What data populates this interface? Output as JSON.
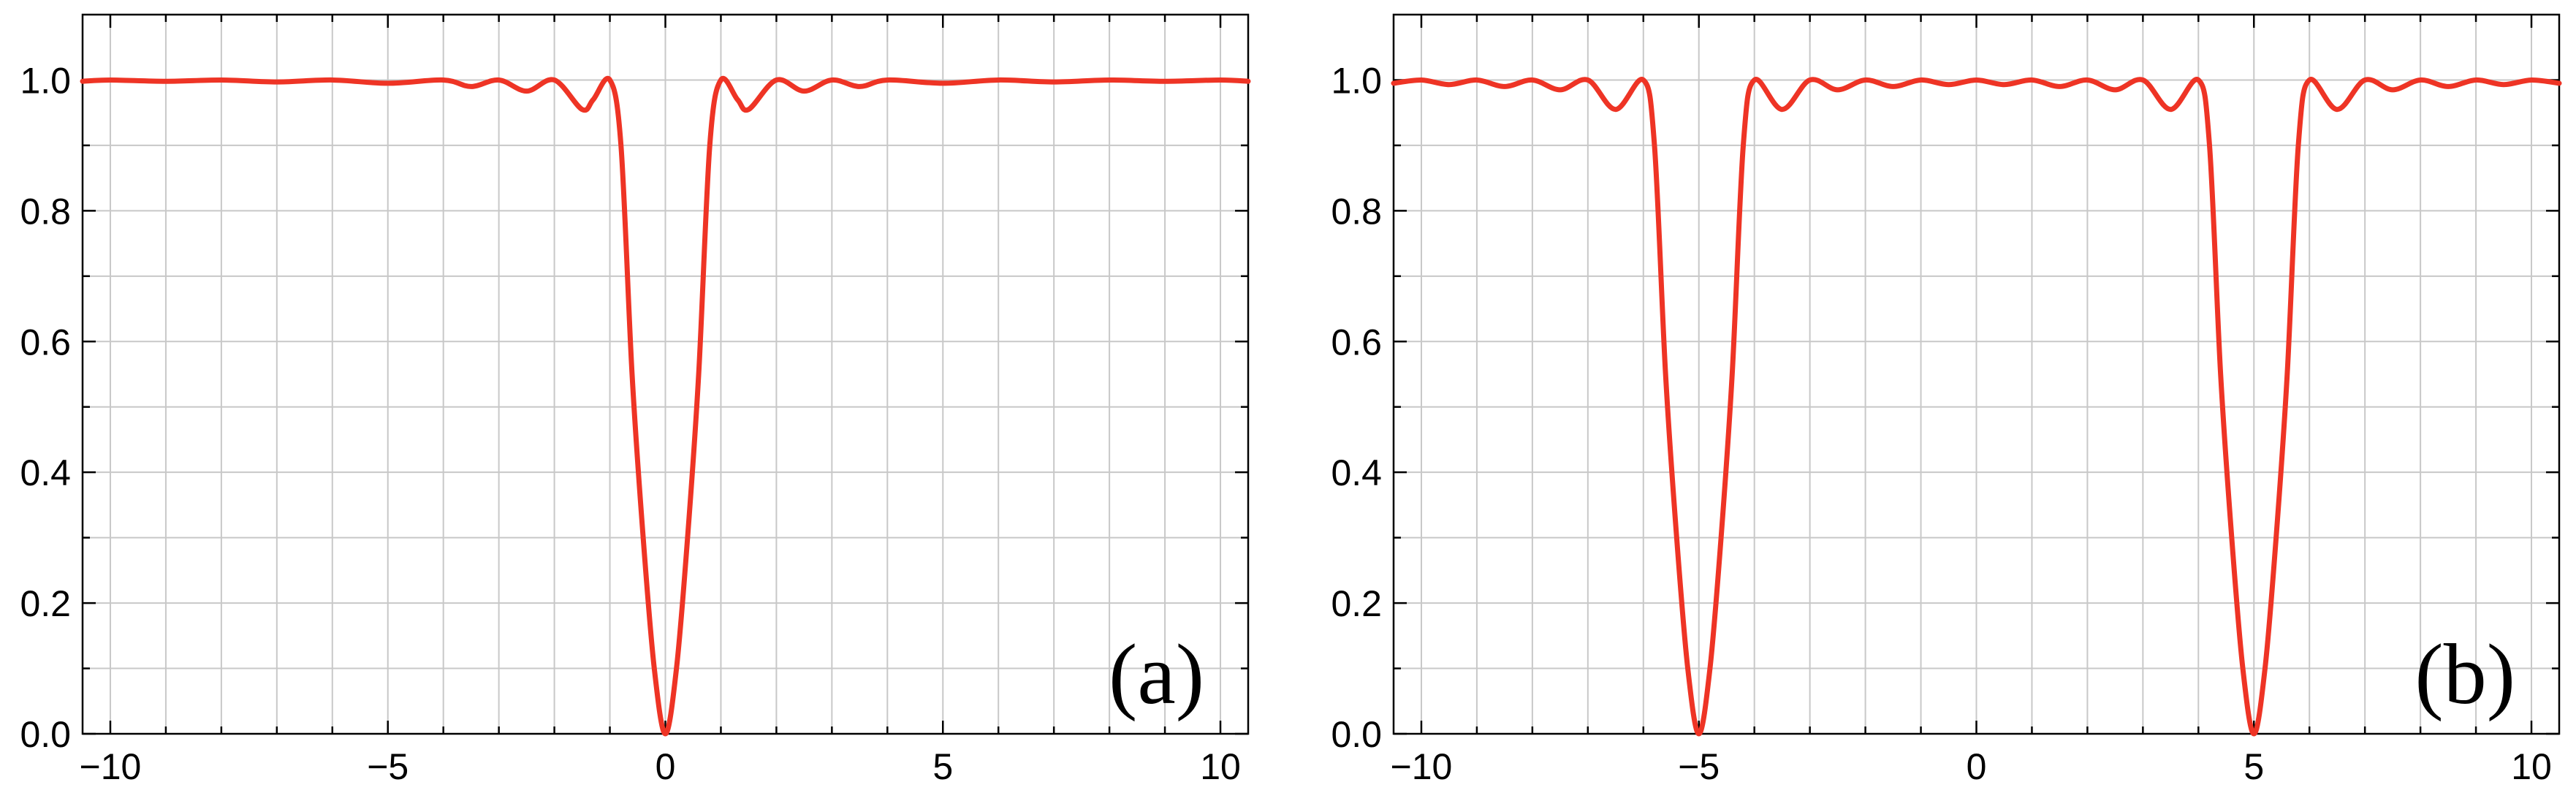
{
  "colors": {
    "line": "#ee3425",
    "grid": "#c8c8c8",
    "axis": "#000000",
    "background": "#ffffff"
  },
  "chart_data": [
    {
      "type": "line",
      "panel_label": "(a)",
      "xlim": [
        -10.5,
        10.5
      ],
      "ylim": [
        0,
        1.1
      ],
      "grid": true,
      "x_ticks": [
        -10,
        -5,
        0,
        5,
        10
      ],
      "x_tick_labels": [
        "−10",
        "−5",
        "0",
        "5",
        "10"
      ],
      "y_ticks": [
        0,
        0.2,
        0.4,
        0.6,
        0.8,
        1.0
      ],
      "y_tick_labels": [
        "0.0",
        "0.2",
        "0.4",
        "0.6",
        "0.8",
        "1.0"
      ],
      "series": [
        {
          "x": [
            -10.5,
            -10,
            -9,
            -8,
            -7,
            -6,
            -5,
            -4,
            -3.5,
            -3,
            -2.5,
            -2,
            -1.5,
            -1.3,
            -1,
            -0.8,
            -0.6,
            -0.4,
            -0.2,
            0,
            0.2,
            0.4,
            0.6,
            0.8,
            1,
            1.3,
            1.5,
            2,
            2.5,
            3,
            3.5,
            4,
            5,
            6,
            7,
            8,
            9,
            10,
            10.5
          ],
          "y": [
            0.998,
            1.0,
            0.998,
            1.0,
            0.997,
            1.0,
            0.995,
            1.0,
            0.99,
            1.0,
            0.983,
            1.0,
            0.955,
            0.97,
            1.0,
            0.9,
            0.55,
            0.3,
            0.1,
            0.0,
            0.1,
            0.3,
            0.55,
            0.9,
            1.0,
            0.97,
            0.955,
            1.0,
            0.983,
            1.0,
            0.99,
            1.0,
            0.995,
            1.0,
            0.997,
            1.0,
            0.998,
            1.0,
            0.998
          ]
        }
      ]
    },
    {
      "type": "line",
      "panel_label": "(b)",
      "xlim": [
        -10.5,
        10.5
      ],
      "ylim": [
        0,
        1.1
      ],
      "grid": true,
      "x_ticks": [
        -10,
        -5,
        0,
        5,
        10
      ],
      "x_tick_labels": [
        "−10",
        "−5",
        "0",
        "5",
        "10"
      ],
      "y_ticks": [
        0,
        0.2,
        0.4,
        0.6,
        0.8,
        1.0
      ],
      "y_tick_labels": [
        "0.0",
        "0.2",
        "0.4",
        "0.6",
        "0.8",
        "1.0"
      ],
      "series": [
        {
          "x": [
            -10.5,
            -10,
            -9.5,
            -9,
            -8.5,
            -8,
            -7.5,
            -7,
            -6.5,
            -6,
            -5.8,
            -5.6,
            -5.4,
            -5.2,
            -5,
            -4.8,
            -4.6,
            -4.4,
            -4.2,
            -4,
            -3.5,
            -3,
            -2.5,
            -2,
            -1.5,
            -1,
            -0.5,
            0,
            0.5,
            1,
            1.5,
            2,
            2.5,
            3,
            3.5,
            4,
            4.2,
            4.4,
            4.6,
            4.8,
            5,
            5.2,
            5.4,
            5.6,
            5.8,
            6,
            6.5,
            7,
            7.5,
            8,
            8.5,
            9,
            9.5,
            10,
            10.5
          ],
          "y": [
            0.995,
            1.0,
            0.993,
            1.0,
            0.99,
            1.0,
            0.985,
            1.0,
            0.955,
            1.0,
            0.9,
            0.55,
            0.3,
            0.1,
            0.0,
            0.1,
            0.3,
            0.55,
            0.9,
            1.0,
            0.955,
            1.0,
            0.985,
            1.0,
            0.99,
            1.0,
            0.993,
            1.0,
            0.993,
            1.0,
            0.99,
            1.0,
            0.985,
            1.0,
            0.955,
            1.0,
            0.9,
            0.55,
            0.3,
            0.1,
            0.0,
            0.1,
            0.3,
            0.55,
            0.9,
            1.0,
            0.955,
            1.0,
            0.985,
            1.0,
            0.99,
            1.0,
            0.993,
            1.0,
            0.995
          ]
        }
      ]
    }
  ]
}
